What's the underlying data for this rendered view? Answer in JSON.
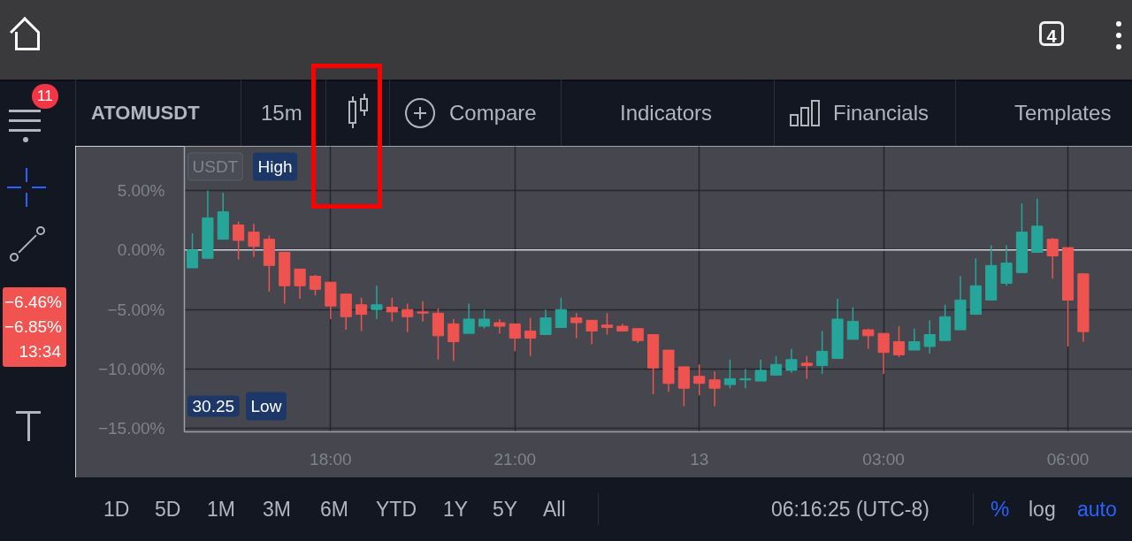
{
  "chart_data": {
    "type": "candlestick",
    "title": "ATOMUSDT",
    "categories": [
      null,
      null,
      null,
      null,
      null,
      null,
      null,
      null,
      null,
      "18:00",
      null,
      null,
      null,
      null,
      null,
      null,
      null,
      null,
      null,
      null,
      null,
      "21:00",
      null,
      null,
      null,
      null,
      null,
      null,
      null,
      null,
      null,
      null,
      null,
      "13",
      null,
      null,
      null,
      null,
      null,
      null,
      null,
      null,
      null,
      null,
      null,
      "03:00",
      null,
      null,
      null,
      null,
      null,
      null,
      null,
      null,
      null,
      null,
      null,
      "06:00",
      null
    ],
    "ohlc": [
      [
        -1.5,
        1.4,
        -1.5,
        0
      ],
      [
        -0.7,
        5.0,
        -0.7,
        2.7
      ],
      [
        0.9,
        4.8,
        0.9,
        3.2
      ],
      [
        2.1,
        2.4,
        -0.8,
        0.8
      ],
      [
        1.5,
        2.2,
        -0.6,
        0.3
      ],
      [
        0.9,
        1.2,
        -3.5,
        -1.3
      ],
      [
        -0.2,
        -0.2,
        -4.5,
        -3.0
      ],
      [
        -1.6,
        -1.6,
        -4.1,
        -3.0
      ],
      [
        -2.2,
        -2.1,
        -3.8,
        -3.3
      ],
      [
        -2.7,
        -2.7,
        -5.8,
        -4.7
      ],
      [
        -3.7,
        -3.7,
        -6.7,
        -5.6
      ],
      [
        -4.6,
        -4.0,
        -6.8,
        -5.4
      ],
      [
        -5.0,
        -3.0,
        -5.8,
        -4.6
      ],
      [
        -4.8,
        -4.0,
        -6.0,
        -5.2
      ],
      [
        -5.0,
        -4.5,
        -6.9,
        -5.6
      ],
      [
        -5.2,
        -4.3,
        -6.0,
        -5.3
      ],
      [
        -5.3,
        -4.9,
        -9.2,
        -7.2
      ],
      [
        -6.2,
        -5.8,
        -9.3,
        -7.7
      ],
      [
        -7.0,
        -4.5,
        -7.0,
        -5.8
      ],
      [
        -6.4,
        -5.0,
        -6.6,
        -5.8
      ],
      [
        -6.1,
        -5.8,
        -7.0,
        -6.4
      ],
      [
        -6.2,
        -6.2,
        -8.5,
        -7.4
      ],
      [
        -6.8,
        -5.7,
        -8.9,
        -7.4
      ],
      [
        -7.1,
        -5.0,
        -7.1,
        -5.7
      ],
      [
        -6.5,
        -4.0,
        -6.5,
        -5.0
      ],
      [
        -5.7,
        -5.3,
        -7.4,
        -6.1
      ],
      [
        -5.9,
        -5.9,
        -7.9,
        -6.8
      ],
      [
        -6.3,
        -5.3,
        -7.1,
        -6.5
      ],
      [
        -6.4,
        -6.2,
        -6.8,
        -6.8
      ],
      [
        -6.6,
        -6.6,
        -7.8,
        -7.6
      ],
      [
        -7.1,
        -7.1,
        -12.1,
        -9.9
      ],
      [
        -8.4,
        -8.4,
        -11.9,
        -11.2
      ],
      [
        -9.8,
        -9.8,
        -13.1,
        -11.6
      ],
      [
        -10.6,
        -9.6,
        -12.2,
        -11.2
      ],
      [
        -10.9,
        -10.2,
        -13.1,
        -11.6
      ],
      [
        -11.3,
        -9.2,
        -11.6,
        -10.8
      ],
      [
        -10.9,
        -10.0,
        -11.6,
        -10.8
      ],
      [
        -11.0,
        -9.2,
        -11.0,
        -10.1
      ],
      [
        -10.5,
        -8.9,
        -10.5,
        -9.6
      ],
      [
        -10.1,
        -8.3,
        -10.3,
        -9.2
      ],
      [
        -9.5,
        -8.9,
        -10.8,
        -9.7
      ],
      [
        -9.7,
        -6.8,
        -10.4,
        -8.5
      ],
      [
        -9.1,
        -4.1,
        -9.1,
        -5.8
      ],
      [
        -7.5,
        -4.8,
        -7.5,
        -6.0
      ],
      [
        -6.7,
        -6.6,
        -8.3,
        -7.2
      ],
      [
        -7.0,
        -7.0,
        -10.4,
        -8.6
      ],
      [
        -7.7,
        -6.4,
        -9.0,
        -8.8
      ],
      [
        -8.4,
        -6.6,
        -8.4,
        -7.7
      ],
      [
        -8.1,
        -5.9,
        -8.7,
        -7.1
      ],
      [
        -7.6,
        -4.6,
        -7.6,
        -5.6
      ],
      [
        -6.7,
        -2.2,
        -6.7,
        -4.2
      ],
      [
        -5.4,
        -0.7,
        -5.4,
        -3.0
      ],
      [
        -4.2,
        0.4,
        -4.2,
        -1.3
      ],
      [
        -2.8,
        0.4,
        -3.0,
        -1.1
      ],
      [
        -1.9,
        3.9,
        -1.9,
        1.5
      ],
      [
        -0.2,
        4.3,
        -0.2,
        2.0
      ],
      [
        0.9,
        1.0,
        -2.4,
        -0.5
      ],
      [
        0.2,
        0.2,
        -8.1,
        -4.2
      ],
      [
        -2.0,
        -2.0,
        -7.7,
        -6.85
      ]
    ],
    "colors": [
      "#26a69a",
      "#26a69a",
      "#26a69a",
      "#ef5350",
      "#ef5350",
      "#ef5350",
      "#ef5350",
      "#ef5350",
      "#ef5350",
      "#ef5350",
      "#ef5350",
      "#ef5350",
      "#26a69a",
      "#ef5350",
      "#ef5350",
      "#ef5350",
      "#ef5350",
      "#ef5350",
      "#26a69a",
      "#26a69a",
      "#ef5350",
      "#ef5350",
      "#ef5350",
      "#26a69a",
      "#26a69a",
      "#ef5350",
      "#ef5350",
      "#ef5350",
      "#ef5350",
      "#ef5350",
      "#ef5350",
      "#ef5350",
      "#ef5350",
      "#ef5350",
      "#ef5350",
      "#26a69a",
      "#26a69a",
      "#26a69a",
      "#26a69a",
      "#26a69a",
      "#ef5350",
      "#26a69a",
      "#26a69a",
      "#26a69a",
      "#ef5350",
      "#ef5350",
      "#ef5350",
      "#26a69a",
      "#26a69a",
      "#26a69a",
      "#26a69a",
      "#26a69a",
      "#26a69a",
      "#26a69a",
      "#26a69a",
      "#26a69a",
      "#ef5350",
      "#ef5350",
      "#ef5350"
    ],
    "ylim": [
      -15.26,
      8.7
    ],
    "yticks": [
      {
        "value": 5,
        "label": "5.00%"
      },
      {
        "value": 0,
        "label": "0.00%"
      },
      {
        "value": -5,
        "label": "−5.00%"
      },
      {
        "value": -10,
        "label": "−10.00%"
      },
      {
        "value": -15,
        "label": "−15.00%"
      }
    ],
    "grid": true,
    "ref_lines": [
      {
        "axis": "y",
        "value": 0,
        "color": "#d1d4dc"
      }
    ],
    "annotations": [
      "4",
      "11",
      "15m",
      "Compare",
      "Indicators",
      "Financials",
      "Templates",
      "USDT",
      "High",
      "−6.46%",
      "−6.85%",
      "13:34",
      "30.25",
      "Low",
      "1D",
      "5D",
      "1M",
      "3M",
      "6M",
      "YTD",
      "1Y",
      "5Y",
      "All",
      "06:16:25 (UTC-8)",
      "%",
      "log",
      "auto"
    ]
  }
}
